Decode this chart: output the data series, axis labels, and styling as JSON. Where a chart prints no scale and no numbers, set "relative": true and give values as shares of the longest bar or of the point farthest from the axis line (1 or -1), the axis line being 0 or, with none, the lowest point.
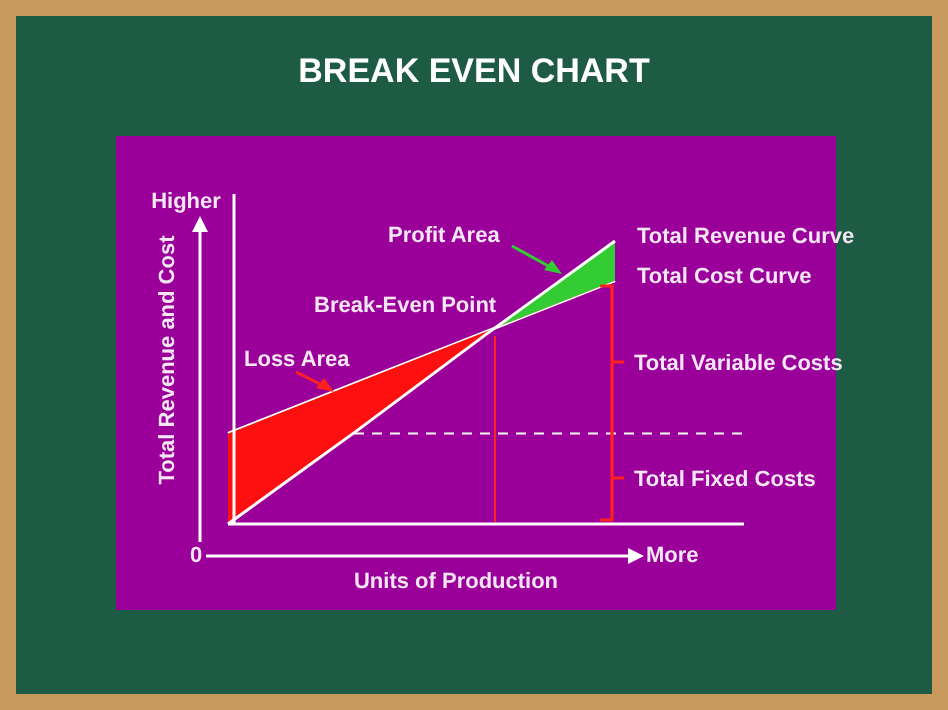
{
  "chart_data": {
    "type": "line",
    "title": "BREAK EVEN CHART",
    "xlabel": "Units of Production",
    "ylabel": "Total Revenue and Cost",
    "relative": true,
    "grid": false,
    "legend": false,
    "marker": "none",
    "categories": [
      null,
      null,
      null,
      null,
      null
    ],
    "series": [
      {
        "name": "Total Revenue Curve",
        "color": "#ffffff",
        "values": [
          0,
          0.33,
          0.67,
          1,
          null
        ]
      },
      {
        "name": "Total Cost Curve",
        "color": "#ffffff",
        "values": [
          0.32,
          0.5,
          0.68,
          0.86,
          null
        ]
      },
      {
        "color": "#ffffff",
        "line_style": "dashed",
        "values": [
          0.32,
          0.32,
          0.32,
          0.32,
          0.32
        ]
      }
    ],
    "annotations": [
      "Higher",
      "0",
      "More",
      "Total Variable Costs",
      "Total Fixed Costs",
      "Break-Even Point",
      "Profit Area",
      "Loss Area"
    ]
  }
}
